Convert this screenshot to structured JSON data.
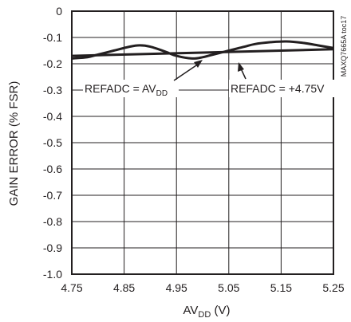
{
  "chart_data": {
    "type": "line",
    "xlabel": {
      "main": "AV",
      "sub": "DD",
      "unit": " (V)"
    },
    "ylabel": "GAIN ERROR (% FSR)",
    "xlim": [
      4.75,
      5.25
    ],
    "ylim": [
      -1.0,
      0
    ],
    "grid": true,
    "x_ticks": [
      "4.75",
      "4.85",
      "4.95",
      "5.05",
      "5.15",
      "5.25"
    ],
    "y_ticks": [
      "0",
      "-0.1",
      "-0.2",
      "-0.3",
      "-0.4",
      "-0.5",
      "-0.6",
      "-0.7",
      "-0.8",
      "-0.9",
      "-1.0"
    ],
    "series": [
      {
        "name": "REFADC = AVDD",
        "x": [
          4.75,
          4.78,
          4.8,
          4.83,
          4.86,
          4.88,
          4.9,
          4.93,
          4.95,
          4.98,
          5.0,
          5.02,
          5.05,
          5.08,
          5.1,
          5.13,
          5.16,
          5.19,
          5.22,
          5.25
        ],
        "y": [
          -0.18,
          -0.175,
          -0.165,
          -0.15,
          -0.135,
          -0.13,
          -0.135,
          -0.155,
          -0.17,
          -0.18,
          -0.175,
          -0.165,
          -0.15,
          -0.135,
          -0.125,
          -0.118,
          -0.115,
          -0.12,
          -0.13,
          -0.14
        ]
      },
      {
        "name": "REFADC = +4.75V",
        "x": [
          4.75,
          5.25
        ],
        "y": [
          -0.17,
          -0.145
        ]
      }
    ],
    "annotations": [
      {
        "main": "REFADC = AV",
        "sub": "DD"
      },
      {
        "main": "REFADC = +4.75V",
        "sub": ""
      }
    ],
    "watermark": "MAXQ7665A toc17"
  }
}
